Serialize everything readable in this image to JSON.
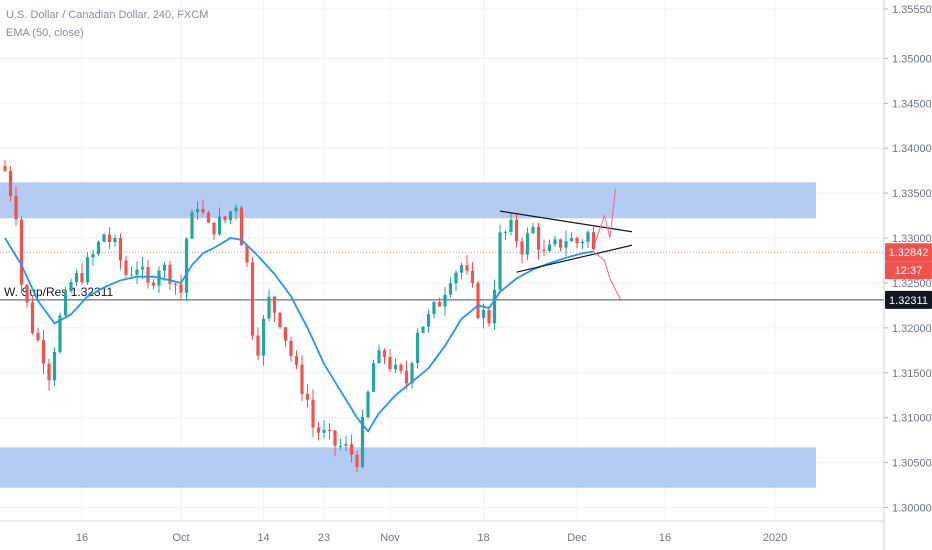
{
  "legend": {
    "title": "U.S. Dollar / Canadian Dollar, 240, FXCM",
    "indicator": "EMA (50, close)"
  },
  "annotations": {
    "support_line_label": "W. Sup/Res 1.32311"
  },
  "price_badges": {
    "last_price": "1.32842",
    "countdown": "12:37",
    "support_level": "1.32311"
  },
  "colors": {
    "bull": "#26a69a",
    "bear": "#ef5350",
    "ema": "#2196f3",
    "zone": "#a7c3f2",
    "projection": "#f06292",
    "grid": "#f0f3fa",
    "axis_text": "#6f7580",
    "badge_price": "#ef5350",
    "badge_level": "#131722"
  },
  "chart_data": {
    "type": "candlestick",
    "symbol": "U.S. Dollar / Canadian Dollar",
    "timeframe": "240",
    "source": "FXCM",
    "y_ticks": [
      1.3555,
      1.35,
      1.345,
      1.34,
      1.335,
      1.33,
      1.325,
      1.32,
      1.315,
      1.31,
      1.305,
      1.3
    ],
    "y_tick_labels": [
      "1.35550",
      "1.35000",
      "1.34500",
      "1.34000",
      "1.33500",
      "1.33000",
      "1.32500",
      "1.32000",
      "1.31500",
      "1.31000",
      "1.30500",
      "1.30000"
    ],
    "ylim": [
      1.2985,
      1.3565
    ],
    "x_tick_labels": [
      "16",
      "Oct",
      "14",
      "23",
      "Nov",
      "18",
      "Dec",
      "16",
      "2020"
    ],
    "x_tick_bars": [
      14,
      32,
      47,
      58,
      70,
      87,
      104,
      120,
      140
    ],
    "bar_count": 150,
    "zones": [
      {
        "from": 1.3322,
        "to": 1.3362
      },
      {
        "from": 1.3022,
        "to": 1.3067
      }
    ],
    "horizontal_lines": [
      {
        "value": 1.32311,
        "label": "W. Sup/Res 1.32311"
      }
    ],
    "last_price": 1.32842,
    "trendlines": [
      {
        "from": [
          90,
          1.333
        ],
        "to": [
          114,
          1.3307
        ]
      },
      {
        "from": [
          93,
          1.3262
        ],
        "to": [
          114,
          1.3292
        ]
      }
    ],
    "projection_up": [
      [
        107,
        1.329
      ],
      [
        109,
        1.3325
      ],
      [
        110,
        1.33
      ],
      [
        111,
        1.3355
      ]
    ],
    "projection_down": [
      [
        107,
        1.3285
      ],
      [
        109,
        1.3275
      ],
      [
        110,
        1.3255
      ],
      [
        112,
        1.323
      ]
    ],
    "price_path": [
      [
        0,
        1.3375
      ],
      [
        2,
        1.333
      ],
      [
        3,
        1.325
      ],
      [
        5,
        1.32
      ],
      [
        7,
        1.317
      ],
      [
        8,
        1.315
      ],
      [
        10,
        1.321
      ],
      [
        12,
        1.325
      ],
      [
        14,
        1.326
      ],
      [
        16,
        1.328
      ],
      [
        18,
        1.3305
      ],
      [
        20,
        1.329
      ],
      [
        22,
        1.326
      ],
      [
        24,
        1.327
      ],
      [
        26,
        1.3245
      ],
      [
        28,
        1.327
      ],
      [
        30,
        1.326
      ],
      [
        32,
        1.324
      ],
      [
        33,
        1.33
      ],
      [
        35,
        1.334
      ],
      [
        37,
        1.331
      ],
      [
        40,
        1.332
      ],
      [
        42,
        1.334
      ],
      [
        43,
        1.33
      ],
      [
        44,
        1.327
      ],
      [
        45,
        1.32
      ],
      [
        46,
        1.318
      ],
      [
        48,
        1.323
      ],
      [
        50,
        1.321
      ],
      [
        52,
        1.317
      ],
      [
        53,
        1.315
      ],
      [
        55,
        1.312
      ],
      [
        56,
        1.309
      ],
      [
        58,
        1.308
      ],
      [
        60,
        1.307
      ],
      [
        62,
        1.3065
      ],
      [
        64,
        1.3055
      ],
      [
        65,
        1.309
      ],
      [
        67,
        1.316
      ],
      [
        69,
        1.317
      ],
      [
        71,
        1.315
      ],
      [
        73,
        1.314
      ],
      [
        75,
        1.32
      ],
      [
        77,
        1.321
      ],
      [
        79,
        1.323
      ],
      [
        81,
        1.326
      ],
      [
        83,
        1.327
      ],
      [
        85,
        1.324
      ],
      [
        86,
        1.322
      ],
      [
        88,
        1.321
      ],
      [
        89,
        1.325
      ],
      [
        90,
        1.33
      ],
      [
        92,
        1.331
      ],
      [
        94,
        1.329
      ],
      [
        96,
        1.331
      ],
      [
        98,
        1.328
      ],
      [
        100,
        1.329
      ],
      [
        102,
        1.33
      ],
      [
        104,
        1.3295
      ],
      [
        106,
        1.3305
      ],
      [
        107,
        1.3284
      ]
    ],
    "ema": [
      [
        0,
        1.33
      ],
      [
        3,
        1.327
      ],
      [
        6,
        1.323
      ],
      [
        9,
        1.3205
      ],
      [
        12,
        1.3215
      ],
      [
        15,
        1.3235
      ],
      [
        18,
        1.3245
      ],
      [
        21,
        1.3253
      ],
      [
        24,
        1.3257
      ],
      [
        27,
        1.3257
      ],
      [
        30,
        1.3253
      ],
      [
        32,
        1.325
      ],
      [
        34,
        1.327
      ],
      [
        36,
        1.3283
      ],
      [
        38,
        1.3289
      ],
      [
        41,
        1.33
      ],
      [
        43,
        1.3298
      ],
      [
        46,
        1.328
      ],
      [
        49,
        1.326
      ],
      [
        52,
        1.3235
      ],
      [
        55,
        1.32
      ],
      [
        58,
        1.316
      ],
      [
        61,
        1.313
      ],
      [
        64,
        1.31
      ],
      [
        66,
        1.3085
      ],
      [
        68,
        1.3105
      ],
      [
        71,
        1.3125
      ],
      [
        74,
        1.314
      ],
      [
        77,
        1.3155
      ],
      [
        80,
        1.318
      ],
      [
        83,
        1.321
      ],
      [
        86,
        1.3225
      ],
      [
        88,
        1.3222
      ],
      [
        90,
        1.324
      ],
      [
        93,
        1.3255
      ],
      [
        96,
        1.3265
      ],
      [
        99,
        1.3272
      ],
      [
        102,
        1.3278
      ],
      [
        105,
        1.3283
      ],
      [
        107,
        1.3285
      ]
    ]
  }
}
